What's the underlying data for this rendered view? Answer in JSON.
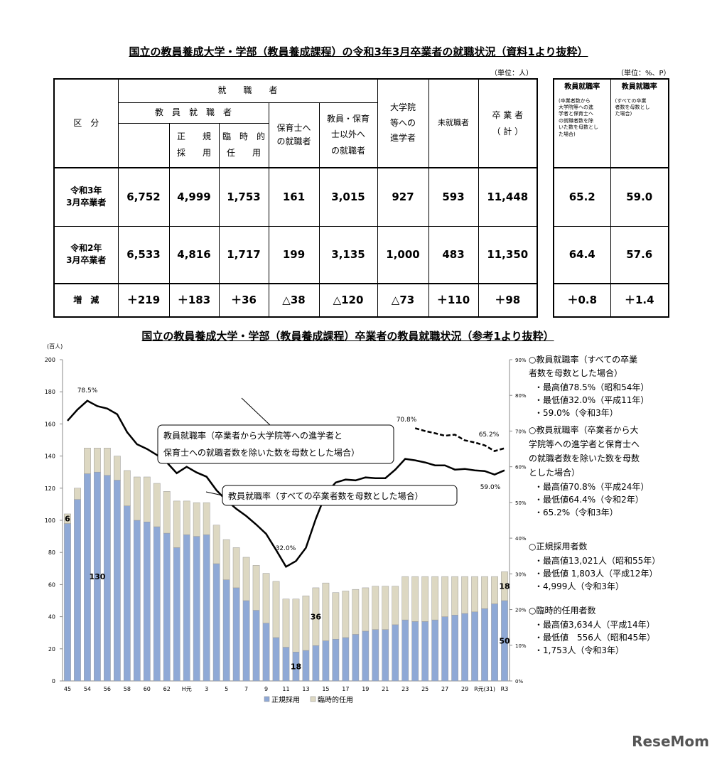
{
  "title": "国立の教員養成大学・学部（教員養成課程）の令和3年3月卒業者の就職状況（資料1より抜粋）",
  "table": {
    "unit_left": "（単位：人）",
    "unit_right": "（単位：%、P）",
    "head": {
      "kubun": "区　分",
      "shushoku": "就　　職　　者",
      "kyoin": "教　員　就　職　者",
      "seiki": "正　　規\n採　　用",
      "rinji": "臨　時　的\n任　　用",
      "hoiku": "保育士へ\nの就職者",
      "igai": "教員・保育\n士以外へ\nの就職者",
      "daigakuin": "大学院\n等への\n進学者",
      "mishushoku": "未就職者",
      "sotsugyo": "卒 業 者\n（ 計 ）",
      "rate1": "教員就職率",
      "rate1_note": "(卒業者数から\n大学院等への進\n学者と保育士へ\nの就職者数を除\nいた数を母数とし\nた場合)",
      "rate2": "教員就職率",
      "rate2_note": "(すべての卒業\n者数を母数とし\nた場合)"
    },
    "rows": [
      [
        "令和3年\n3月卒業者",
        "6,752",
        "4,999",
        "1,753",
        "161",
        "3,015",
        "927",
        "593",
        "11,448",
        "65.2",
        "59.0"
      ],
      [
        "令和2年\n3月卒業者",
        "6,533",
        "4,816",
        "1,717",
        "199",
        "3,135",
        "1,000",
        "483",
        "11,350",
        "64.4",
        "57.6"
      ],
      [
        "増　減",
        "＋219",
        "＋183",
        "＋36",
        "△38",
        "△120",
        "△73",
        "＋110",
        "＋98",
        "＋0.8",
        "＋1.4"
      ]
    ]
  },
  "chart_data": {
    "type": "bar",
    "title": "国立の教員養成大学・学部（教員養成課程）卒業者の教員就職状況（参考1より抜粋）",
    "y_label": "(百人)",
    "categories": [
      "45",
      null,
      "54",
      null,
      "56",
      null,
      "58",
      null,
      "60",
      null,
      "62",
      null,
      "H元",
      null,
      "3",
      null,
      "5",
      null,
      "7",
      null,
      "9",
      null,
      "11",
      null,
      "13",
      null,
      "15",
      null,
      "17",
      null,
      "19",
      null,
      "21",
      null,
      "23",
      null,
      "25",
      null,
      "27",
      null,
      "29",
      null,
      "R元(31)",
      null,
      "R3"
    ],
    "ylim": [
      0,
      200
    ],
    "yticks": [
      0,
      20,
      40,
      60,
      80,
      100,
      120,
      140,
      160,
      180,
      200
    ],
    "y2lim": [
      0,
      90
    ],
    "y2ticks": [
      {
        "value": 0,
        "label": "0%"
      },
      {
        "value": 10,
        "label": "10%"
      },
      {
        "value": 20,
        "label": "20%"
      },
      {
        "value": 30,
        "label": "30%"
      },
      {
        "value": 40,
        "label": "40%"
      },
      {
        "value": 50,
        "label": "50%"
      },
      {
        "value": 60,
        "label": "60%"
      },
      {
        "value": 70,
        "label": "70%"
      },
      {
        "value": 80,
        "label": "80%"
      },
      {
        "value": 90,
        "label": "90%"
      }
    ],
    "series": [
      {
        "name": "正規採用",
        "type": "bar",
        "color": "#8fa9d6",
        "values": [
          98,
          113,
          129,
          130,
          128,
          125,
          109,
          100,
          99,
          96,
          92,
          83,
          91,
          90,
          91,
          73,
          63,
          58,
          50,
          44,
          36,
          27,
          21,
          18,
          19,
          22,
          25,
          26,
          27,
          29,
          31,
          32,
          32,
          35,
          38,
          37,
          37,
          38,
          40,
          41,
          42,
          43,
          45,
          48,
          50
        ],
        "value_labels": [
          null,
          null,
          null,
          "130",
          null,
          null,
          null,
          null,
          null,
          null,
          null,
          null,
          null,
          null,
          null,
          null,
          null,
          null,
          null,
          null,
          null,
          null,
          null,
          "18",
          null,
          null,
          null,
          null,
          null,
          null,
          null,
          null,
          null,
          null,
          null,
          null,
          null,
          null,
          null,
          null,
          null,
          null,
          null,
          null,
          "50"
        ]
      },
      {
        "name": "臨時的任用",
        "type": "bar",
        "color": "#ddd8c2",
        "values": [
          6,
          7,
          16,
          15,
          17,
          15,
          22,
          27,
          28,
          27,
          26,
          29,
          21,
          21,
          20,
          24,
          25,
          25,
          27,
          28,
          31,
          35,
          30,
          33,
          34,
          36,
          36,
          29,
          29,
          28,
          27,
          27,
          27,
          24,
          27,
          28,
          28,
          27,
          25,
          24,
          23,
          22,
          20,
          17,
          18
        ],
        "value_labels": [
          "6",
          null,
          null,
          null,
          null,
          null,
          null,
          null,
          null,
          null,
          null,
          null,
          null,
          null,
          null,
          null,
          null,
          null,
          null,
          null,
          null,
          null,
          null,
          null,
          null,
          "36",
          null,
          null,
          null,
          null,
          null,
          null,
          null,
          null,
          null,
          null,
          null,
          null,
          null,
          null,
          null,
          null,
          null,
          null,
          "18"
        ]
      },
      {
        "type": "line",
        "axis": "y2",
        "style": "solid",
        "color": "#000000",
        "values": [
          72.9,
          76,
          78.5,
          77,
          76.3,
          74.7,
          69.7,
          66.3,
          65,
          63.3,
          61.2,
          58.2,
          60,
          58.4,
          57.2,
          53.4,
          50.6,
          48.2,
          46.2,
          43.8,
          41.2,
          36.7,
          32,
          33.6,
          37.3,
          45.4,
          52.4,
          55.6,
          56.4,
          56.2,
          57,
          56.8,
          56.8,
          59.2,
          62.2,
          61.8,
          61.2,
          60.4,
          60.4,
          59.2,
          59.4,
          59,
          58.8,
          57.8,
          59
        ]
      },
      {
        "type": "line",
        "axis": "y2",
        "style": "dashed",
        "color": "#000000",
        "values": [
          null,
          null,
          null,
          null,
          null,
          null,
          null,
          null,
          null,
          null,
          null,
          null,
          null,
          null,
          null,
          null,
          null,
          null,
          null,
          null,
          null,
          null,
          null,
          null,
          null,
          null,
          null,
          null,
          null,
          null,
          null,
          null,
          null,
          null,
          null,
          70.8,
          70,
          69.4,
          68.7,
          69,
          67.4,
          66.8,
          66,
          64.4,
          65.2
        ]
      }
    ],
    "annotations": [
      "78.5%",
      "32.0%",
      "70.8%",
      "65.2%",
      "59.0%"
    ],
    "callouts": [
      [
        "教員就職率（卒業者から大学院等への進学者と",
        "保育士への就職者数を除いた数を母数とした場合）"
      ],
      [
        "教員就職率（すべての卒業者数を母数とした場合）"
      ]
    ],
    "notes": [
      "○教員就職率（すべての卒業",
      "者数を母数とした場合）",
      "・最高値78.5%（昭和54年）",
      "・最低値32.0%（平成11年）",
      "・59.0%（令和3年）",
      "○教員就職率（卒業者から大",
      "学院等への進学者と保育士へ",
      "の就職者数を除いた数を母数",
      "とした場合）",
      "・最高値70.8%（平成24年）",
      "・最低値64.4%（令和2年）",
      "・65.2%（令和3年）",
      "○正規採用者数",
      "・最高値13,021人（昭和55年）",
      "・最低値 1,803人（平成12年）",
      "・4,999人（令和3年）",
      "○臨時的任用者数",
      "・最高値3,634人（平成14年）",
      "・最低値　556人（昭和45年）",
      "・1,753人（令和3年）"
    ]
  },
  "watermark": "ReseMom"
}
